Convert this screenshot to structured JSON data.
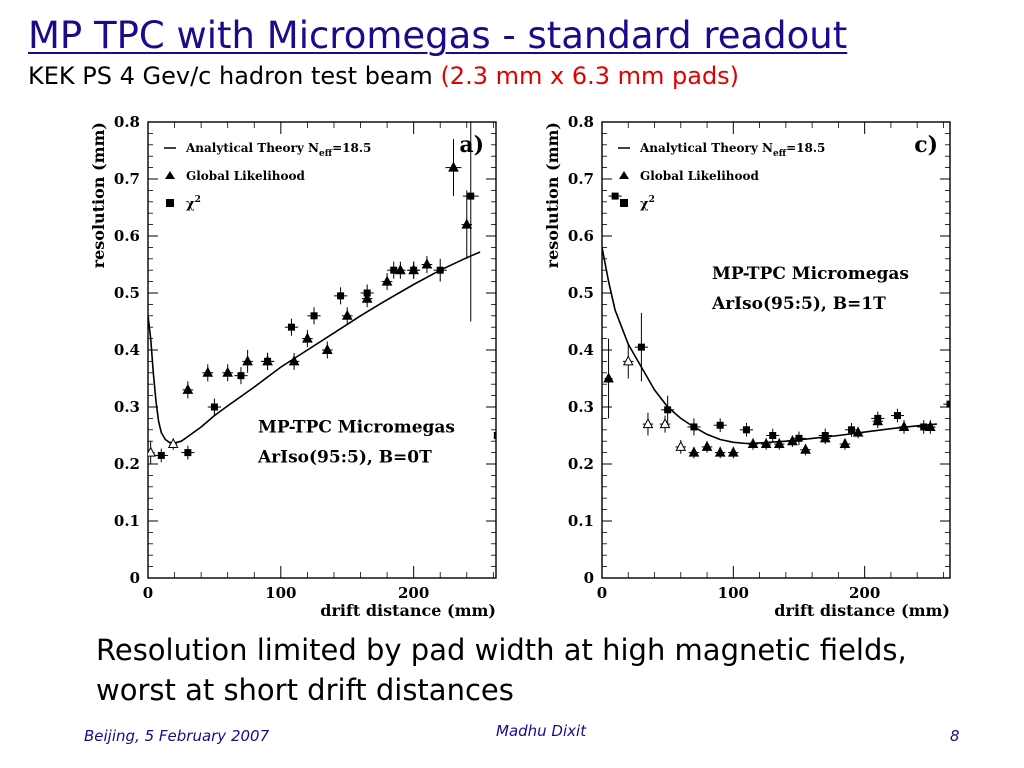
{
  "slide": {
    "title": "MP TPC with Micromegas - standard readout",
    "subtitle_main": "KEK PS 4 Gev/c hadron test beam ",
    "subtitle_red": "(2.3 mm x 6.3 mm pads)",
    "caption": "Resolution limited by pad width at high magnetic fields, worst at short drift distances",
    "footer_left": "Beijing, 5 February 2007",
    "footer_center": "Madhu Dixit",
    "footer_right": "8"
  },
  "chart_data": [
    {
      "id": "a",
      "type": "scatter",
      "panel_label": "a)",
      "xlabel": "drift distance (mm)",
      "ylabel": "resolution (mm)",
      "xlim": [
        0,
        262
      ],
      "ylim": [
        0,
        0.8
      ],
      "xticks": [
        "0",
        "100",
        "200"
      ],
      "xtick_values": [
        0,
        100,
        200
      ],
      "yticks": [
        "0",
        "0.1",
        "0.2",
        "0.3",
        "0.4",
        "0.5",
        "0.6",
        "0.7",
        "0.8"
      ],
      "ytick_values": [
        0,
        0.1,
        0.2,
        0.3,
        0.4,
        0.5,
        0.6,
        0.7,
        0.8
      ],
      "legend": [
        "Analytical Theory N",
        "eff",
        "=18.5",
        "Global Likelihood",
        "χ",
        "2"
      ],
      "legend_placement": "top-left",
      "annotation_lines": [
        "MP-TPC Micromegas",
        "ArIso(95:5), B=0T"
      ],
      "series": [
        {
          "name": "Analytical Theory Neff=18.5",
          "kind": "line",
          "x": [
            0,
            2,
            4,
            6,
            8,
            10,
            13,
            16,
            20,
            25,
            30,
            40,
            50,
            60,
            80,
            100,
            120,
            140,
            160,
            180,
            200,
            220,
            240,
            250
          ],
          "y": [
            0.46,
            0.42,
            0.36,
            0.31,
            0.275,
            0.255,
            0.243,
            0.238,
            0.237,
            0.24,
            0.248,
            0.265,
            0.285,
            0.302,
            0.335,
            0.37,
            0.4,
            0.43,
            0.46,
            0.488,
            0.515,
            0.54,
            0.562,
            0.572
          ]
        },
        {
          "name": "Global Likelihood",
          "kind": "points",
          "marker": "triangle",
          "x": [
            2,
            19,
            30,
            45,
            60,
            75,
            90,
            110,
            120,
            135,
            150,
            165,
            180,
            190,
            200,
            210,
            230,
            240
          ],
          "y": [
            0.22,
            0.235,
            0.33,
            0.36,
            0.36,
            0.38,
            0.38,
            0.38,
            0.42,
            0.4,
            0.46,
            0.49,
            0.52,
            0.54,
            0.54,
            0.55,
            0.72,
            0.62
          ],
          "xerr": [
            3,
            3,
            4,
            4,
            4,
            4,
            4,
            4,
            4,
            4,
            4,
            4,
            4,
            4,
            4,
            4,
            6,
            4
          ],
          "yerr": [
            0.02,
            0.01,
            0.015,
            0.015,
            0.015,
            0.02,
            0.015,
            0.015,
            0.015,
            0.015,
            0.015,
            0.015,
            0.015,
            0.015,
            0.015,
            0.015,
            0.05,
            0.06
          ]
        },
        {
          "name": "χ2",
          "kind": "points",
          "marker": "square",
          "x": [
            10,
            30,
            50,
            70,
            90,
            108,
            125,
            145,
            165,
            185,
            200,
            220,
            243,
            263
          ],
          "y": [
            0.215,
            0.22,
            0.3,
            0.355,
            0.38,
            0.44,
            0.46,
            0.495,
            0.5,
            0.54,
            0.54,
            0.54,
            0.67,
            0.25
          ],
          "xerr": [
            5,
            5,
            5,
            5,
            5,
            5,
            5,
            5,
            5,
            5,
            5,
            5,
            6,
            0
          ],
          "yerr": [
            0.012,
            0.012,
            0.015,
            0.015,
            0.015,
            0.015,
            0.015,
            0.015,
            0.015,
            0.015,
            0.015,
            0.02,
            0.22,
            0.25
          ]
        }
      ]
    },
    {
      "id": "c",
      "type": "scatter",
      "panel_label": "c)",
      "xlabel": "drift distance (mm)",
      "ylabel": "resolution (mm)",
      "xlim": [
        0,
        265
      ],
      "ylim": [
        0,
        0.8
      ],
      "xticks": [
        "0",
        "100",
        "200"
      ],
      "xtick_values": [
        0,
        100,
        200
      ],
      "yticks": [
        "0",
        "0.1",
        "0.2",
        "0.3",
        "0.4",
        "0.5",
        "0.6",
        "0.7",
        "0.8"
      ],
      "ytick_values": [
        0,
        0.1,
        0.2,
        0.3,
        0.4,
        0.5,
        0.6,
        0.7,
        0.8
      ],
      "legend": [
        "Analytical Theory N",
        "eff",
        "=18.5",
        "Global Likelihood",
        "χ",
        "2"
      ],
      "legend_placement": "top-left",
      "annotation_lines": [
        "MP-TPC Micromegas",
        "ArIso(95:5), B=1T"
      ],
      "series": [
        {
          "name": "Analytical Theory Neff=18.5",
          "kind": "line",
          "x": [
            0,
            5,
            10,
            20,
            30,
            40,
            50,
            60,
            70,
            80,
            90,
            100,
            110,
            120,
            140,
            160,
            180,
            200,
            220,
            240,
            255
          ],
          "y": [
            0.58,
            0.52,
            0.47,
            0.41,
            0.37,
            0.33,
            0.3,
            0.28,
            0.265,
            0.252,
            0.243,
            0.238,
            0.236,
            0.237,
            0.24,
            0.245,
            0.25,
            0.256,
            0.262,
            0.267,
            0.27
          ]
        },
        {
          "name": "Global Likelihood",
          "kind": "points",
          "marker": "triangle",
          "x": [
            5,
            20,
            35,
            48,
            60,
            70,
            80,
            90,
            100,
            115,
            125,
            135,
            145,
            155,
            170,
            185,
            195,
            210,
            230,
            250
          ],
          "y": [
            0.35,
            0.38,
            0.27,
            0.27,
            0.23,
            0.22,
            0.23,
            0.22,
            0.22,
            0.235,
            0.235,
            0.235,
            0.24,
            0.225,
            0.245,
            0.235,
            0.255,
            0.275,
            0.265,
            0.265
          ],
          "xerr": [
            3,
            4,
            4,
            4,
            4,
            4,
            4,
            4,
            4,
            4,
            4,
            4,
            4,
            4,
            4,
            4,
            4,
            4,
            4,
            4
          ],
          "yerr": [
            0.07,
            0.03,
            0.02,
            0.015,
            0.012,
            0.01,
            0.01,
            0.01,
            0.01,
            0.01,
            0.01,
            0.01,
            0.01,
            0.01,
            0.01,
            0.01,
            0.01,
            0.012,
            0.012,
            0.012
          ]
        },
        {
          "name": "χ2",
          "kind": "points",
          "marker": "square",
          "x": [
            10,
            30,
            50,
            70,
            90,
            110,
            130,
            150,
            170,
            190,
            210,
            225,
            245,
            265
          ],
          "y": [
            0.67,
            0.405,
            0.295,
            0.265,
            0.268,
            0.26,
            0.25,
            0.245,
            0.25,
            0.26,
            0.28,
            0.285,
            0.265,
            0.305
          ],
          "xerr": [
            5,
            5,
            5,
            5,
            5,
            5,
            5,
            5,
            5,
            5,
            5,
            5,
            5,
            5
          ],
          "yerr": [
            0.0,
            0.06,
            0.025,
            0.015,
            0.012,
            0.012,
            0.012,
            0.012,
            0.012,
            0.012,
            0.012,
            0.012,
            0.012,
            0.04
          ]
        }
      ]
    }
  ]
}
